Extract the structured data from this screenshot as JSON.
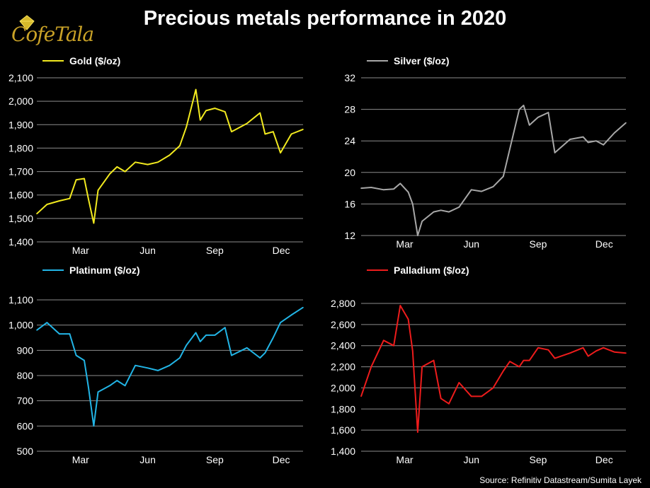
{
  "title": "Precious metals performance in 2020",
  "logo_text": "CofeTala",
  "source": "Source: Refinitiv Datastream/Sumita Layek",
  "x_tick_labels": [
    "Mar",
    "Jun",
    "Sep",
    "Dec"
  ],
  "chart_data": [
    {
      "type": "line",
      "series": [
        {
          "name": "Gold ($/oz)",
          "color": "#f2ea1f"
        }
      ],
      "ylim": [
        1400,
        2100
      ],
      "yticks": [
        1400,
        1500,
        1600,
        1700,
        1800,
        1900,
        2000,
        2100
      ],
      "ytick_labels": [
        "1,400",
        "1,500",
        "1,600",
        "1,700",
        "1,800",
        "1,900",
        "2,000",
        "2,100"
      ],
      "xticks": [
        "Mar",
        "Jun",
        "Sep",
        "Dec"
      ],
      "grid": true,
      "x": [
        "2020-01-01",
        "2020-01-15",
        "2020-02-01",
        "2020-02-15",
        "2020-02-24",
        "2020-03-06",
        "2020-03-12",
        "2020-03-19",
        "2020-03-25",
        "2020-04-10",
        "2020-04-20",
        "2020-05-01",
        "2020-05-15",
        "2020-06-01",
        "2020-06-15",
        "2020-07-01",
        "2020-07-15",
        "2020-07-24",
        "2020-08-06",
        "2020-08-12",
        "2020-08-20",
        "2020-09-01",
        "2020-09-15",
        "2020-09-24",
        "2020-10-15",
        "2020-11-02",
        "2020-11-09",
        "2020-11-20",
        "2020-11-30",
        "2020-12-15",
        "2020-12-31"
      ],
      "values": [
        1520,
        1560,
        1575,
        1585,
        1665,
        1670,
        1580,
        1480,
        1620,
        1690,
        1720,
        1700,
        1740,
        1730,
        1740,
        1770,
        1810,
        1890,
        2050,
        1920,
        1960,
        1970,
        1955,
        1870,
        1905,
        1950,
        1860,
        1870,
        1780,
        1860,
        1880
      ]
    },
    {
      "type": "line",
      "series": [
        {
          "name": "Silver ($/oz)",
          "color": "#a8a8a8"
        }
      ],
      "ylim": [
        12,
        32
      ],
      "yticks": [
        12,
        16,
        20,
        24,
        28,
        32
      ],
      "ytick_labels": [
        "12",
        "16",
        "20",
        "24",
        "28",
        "32"
      ],
      "xticks": [
        "Mar",
        "Jun",
        "Sep",
        "Dec"
      ],
      "grid": true,
      "x": [
        "2020-01-01",
        "2020-01-15",
        "2020-02-01",
        "2020-02-15",
        "2020-02-24",
        "2020-03-06",
        "2020-03-12",
        "2020-03-19",
        "2020-03-25",
        "2020-04-10",
        "2020-04-20",
        "2020-05-01",
        "2020-05-15",
        "2020-06-01",
        "2020-06-15",
        "2020-07-01",
        "2020-07-15",
        "2020-07-24",
        "2020-08-06",
        "2020-08-12",
        "2020-08-20",
        "2020-09-01",
        "2020-09-15",
        "2020-09-24",
        "2020-10-15",
        "2020-11-02",
        "2020-11-09",
        "2020-11-20",
        "2020-11-30",
        "2020-12-15",
        "2020-12-31"
      ],
      "values": [
        18,
        18.1,
        17.8,
        17.9,
        18.6,
        17.5,
        16,
        12,
        13.8,
        15,
        15.2,
        15,
        15.6,
        17.8,
        17.6,
        18.2,
        19.5,
        23,
        28,
        28.5,
        26,
        27,
        27.6,
        22.5,
        24.2,
        24.5,
        23.8,
        24,
        23.5,
        25,
        26.3
      ]
    },
    {
      "type": "line",
      "series": [
        {
          "name": "Platinum ($/oz)",
          "color": "#22b5e6"
        }
      ],
      "ylim": [
        500,
        1100
      ],
      "yticks": [
        500,
        600,
        700,
        800,
        900,
        1000,
        1100
      ],
      "ytick_labels": [
        "500",
        "600",
        "700",
        "800",
        "900",
        "1,000",
        "1,100"
      ],
      "xticks": [
        "Mar",
        "Jun",
        "Sep",
        "Dec"
      ],
      "grid": true,
      "x": [
        "2020-01-01",
        "2020-01-15",
        "2020-02-01",
        "2020-02-15",
        "2020-02-24",
        "2020-03-06",
        "2020-03-12",
        "2020-03-19",
        "2020-03-25",
        "2020-04-10",
        "2020-04-20",
        "2020-05-01",
        "2020-05-15",
        "2020-06-01",
        "2020-06-15",
        "2020-07-01",
        "2020-07-15",
        "2020-07-24",
        "2020-08-06",
        "2020-08-12",
        "2020-08-20",
        "2020-09-01",
        "2020-09-15",
        "2020-09-24",
        "2020-10-15",
        "2020-11-02",
        "2020-11-09",
        "2020-11-20",
        "2020-11-30",
        "2020-12-15",
        "2020-12-31"
      ],
      "values": [
        980,
        1010,
        965,
        965,
        880,
        860,
        750,
        600,
        735,
        760,
        780,
        760,
        840,
        830,
        820,
        840,
        870,
        920,
        970,
        935,
        960,
        960,
        990,
        880,
        910,
        870,
        890,
        950,
        1010,
        1040,
        1070
      ]
    },
    {
      "type": "line",
      "series": [
        {
          "name": "Palladium ($/oz)",
          "color": "#ee1c1c"
        }
      ],
      "ylim": [
        1400,
        2800
      ],
      "yticks": [
        1400,
        1600,
        1800,
        2000,
        2200,
        2400,
        2600,
        2800
      ],
      "ytick_labels": [
        "1,400",
        "1,600",
        "1,800",
        "2,000",
        "2,200",
        "2,400",
        "2,600",
        "2,800"
      ],
      "xticks": [
        "Mar",
        "Jun",
        "Sep",
        "Dec"
      ],
      "grid": true,
      "x": [
        "2020-01-01",
        "2020-01-15",
        "2020-02-01",
        "2020-02-15",
        "2020-02-24",
        "2020-03-06",
        "2020-03-12",
        "2020-03-19",
        "2020-03-25",
        "2020-04-10",
        "2020-04-20",
        "2020-05-01",
        "2020-05-15",
        "2020-06-01",
        "2020-06-15",
        "2020-07-01",
        "2020-07-15",
        "2020-07-24",
        "2020-08-06",
        "2020-08-12",
        "2020-08-20",
        "2020-09-01",
        "2020-09-15",
        "2020-09-24",
        "2020-10-15",
        "2020-11-02",
        "2020-11-09",
        "2020-11-20",
        "2020-11-30",
        "2020-12-15",
        "2020-12-31"
      ],
      "values": [
        1920,
        2200,
        2450,
        2400,
        2780,
        2650,
        2350,
        1580,
        2200,
        2260,
        1900,
        1850,
        2050,
        1920,
        1920,
        2000,
        2160,
        2250,
        2200,
        2260,
        2260,
        2380,
        2360,
        2280,
        2330,
        2380,
        2300,
        2350,
        2380,
        2340,
        2330
      ]
    }
  ]
}
